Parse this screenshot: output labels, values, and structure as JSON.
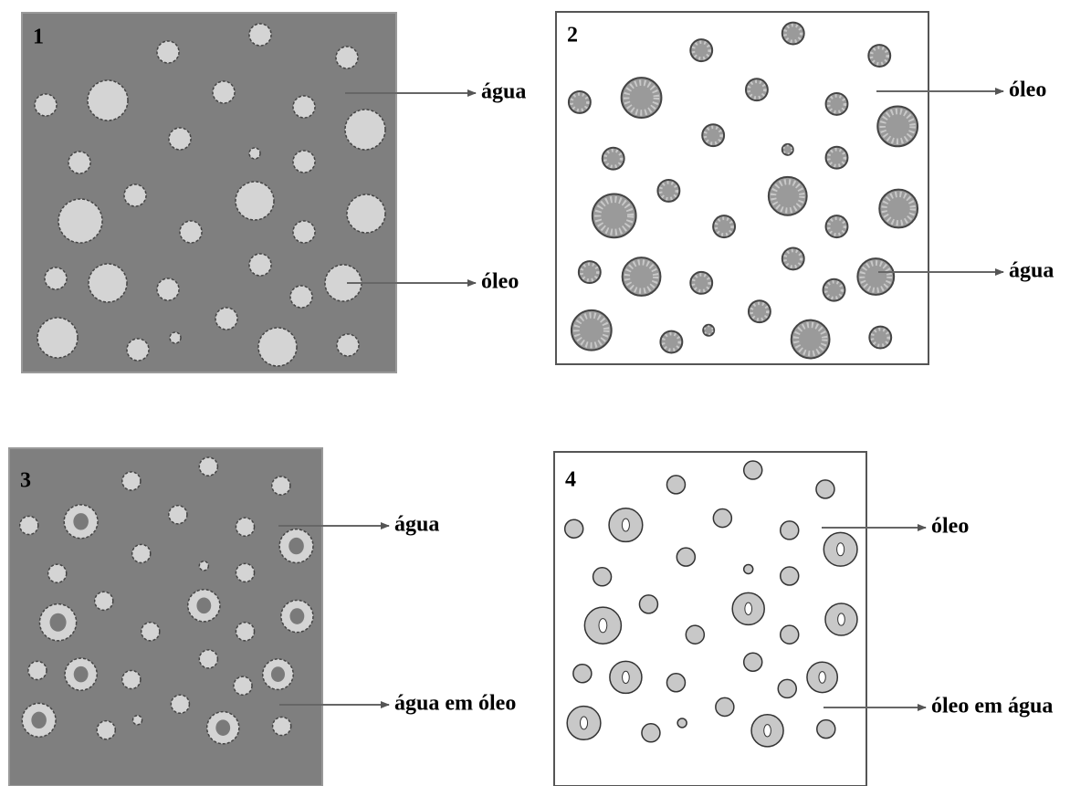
{
  "panels": [
    {
      "number": "1",
      "labels": [
        "água",
        "óleo"
      ]
    },
    {
      "number": "2",
      "labels": [
        "óleo",
        "água"
      ]
    },
    {
      "number": "3",
      "labels": [
        "água",
        "água em óleo"
      ]
    },
    {
      "number": "4",
      "labels": [
        "óleo",
        "óleo em água"
      ]
    }
  ]
}
